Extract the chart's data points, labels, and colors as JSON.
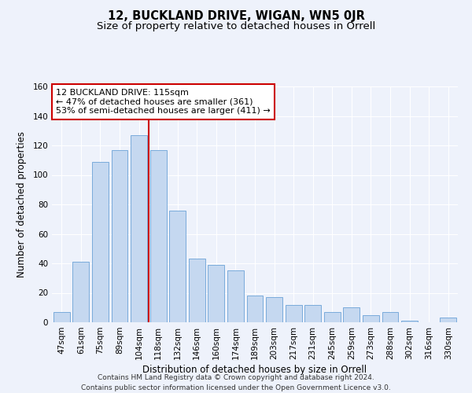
{
  "title": "12, BUCKLAND DRIVE, WIGAN, WN5 0JR",
  "subtitle": "Size of property relative to detached houses in Orrell",
  "xlabel": "Distribution of detached houses by size in Orrell",
  "ylabel": "Number of detached properties",
  "categories": [
    "47sqm",
    "61sqm",
    "75sqm",
    "89sqm",
    "104sqm",
    "118sqm",
    "132sqm",
    "146sqm",
    "160sqm",
    "174sqm",
    "189sqm",
    "203sqm",
    "217sqm",
    "231sqm",
    "245sqm",
    "259sqm",
    "273sqm",
    "288sqm",
    "302sqm",
    "316sqm",
    "330sqm"
  ],
  "values": [
    7,
    41,
    109,
    117,
    127,
    117,
    76,
    43,
    39,
    35,
    18,
    17,
    12,
    12,
    7,
    10,
    5,
    7,
    1,
    0,
    3
  ],
  "bar_color": "#c5d8f0",
  "bar_edge_color": "#7aabdb",
  "background_color": "#eef2fb",
  "grid_color": "#ffffff",
  "vline_x_index": 4,
  "vline_color": "#cc0000",
  "annotation_text": "12 BUCKLAND DRIVE: 115sqm\n← 47% of detached houses are smaller (361)\n53% of semi-detached houses are larger (411) →",
  "annotation_box_color": "#ffffff",
  "annotation_box_edge": "#cc0000",
  "ylim": [
    0,
    160
  ],
  "yticks": [
    0,
    20,
    40,
    60,
    80,
    100,
    120,
    140,
    160
  ],
  "footer": "Contains HM Land Registry data © Crown copyright and database right 2024.\nContains public sector information licensed under the Open Government Licence v3.0.",
  "title_fontsize": 10.5,
  "subtitle_fontsize": 9.5,
  "xlabel_fontsize": 8.5,
  "ylabel_fontsize": 8.5,
  "tick_fontsize": 7.5,
  "footer_fontsize": 6.5,
  "ann_fontsize": 8
}
